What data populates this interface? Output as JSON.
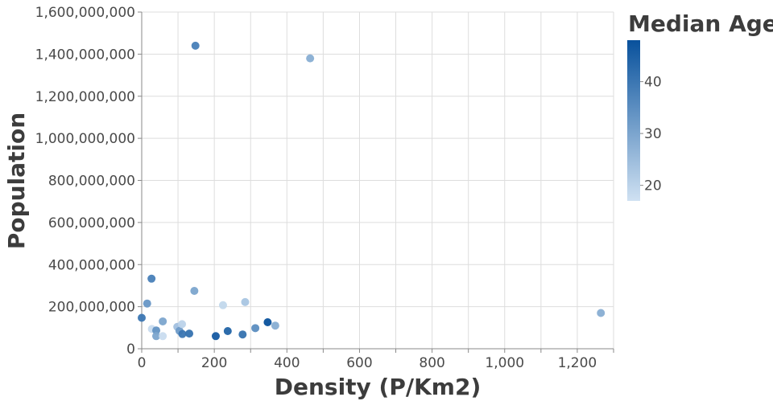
{
  "chart_data": {
    "type": "scatter",
    "title": "",
    "xlabel": "Density (P/Km2)",
    "ylabel": "Population",
    "xlim": [
      0,
      1300
    ],
    "ylim": [
      0,
      1600000000
    ],
    "x_ticks": [
      0,
      200,
      400,
      600,
      800,
      1000,
      1200
    ],
    "x_tick_labels": [
      "0",
      "200",
      "400",
      "600",
      "800",
      "1,000",
      "1,200"
    ],
    "y_ticks": [
      0,
      200000000,
      400000000,
      600000000,
      800000000,
      1000000000,
      1200000000,
      1400000000,
      1600000000
    ],
    "y_tick_labels": [
      "0",
      "200,000,000",
      "400,000,000",
      "600,000,000",
      "800,000,000",
      "1,000,000,000",
      "1,200,000,000",
      "1,400,000,000",
      "1,600,000,000"
    ],
    "grid": true,
    "legend": {
      "title": "Median Age",
      "placement": "right",
      "range": [
        17,
        48
      ],
      "ticks": [
        20,
        30,
        40
      ],
      "tick_labels": [
        "20",
        "30",
        "40"
      ],
      "color_low": "#cfe1f2",
      "color_high": "#08519c"
    },
    "points": [
      {
        "x": 148,
        "y": 1440000000,
        "age": 38
      },
      {
        "x": 464,
        "y": 1380000000,
        "age": 28
      },
      {
        "x": 27,
        "y": 333000000,
        "age": 38
      },
      {
        "x": 15,
        "y": 215000000,
        "age": 33
      },
      {
        "x": 145,
        "y": 275000000,
        "age": 30
      },
      {
        "x": 0,
        "y": 147000000,
        "age": 40
      },
      {
        "x": 224,
        "y": 207000000,
        "age": 19
      },
      {
        "x": 285,
        "y": 222000000,
        "age": 23
      },
      {
        "x": 1265,
        "y": 170000000,
        "age": 28
      },
      {
        "x": 28,
        "y": 94000000,
        "age": 18
      },
      {
        "x": 40,
        "y": 87000000,
        "age": 34
      },
      {
        "x": 40,
        "y": 60000000,
        "age": 30
      },
      {
        "x": 58,
        "y": 130000000,
        "age": 30
      },
      {
        "x": 58,
        "y": 60000000,
        "age": 18
      },
      {
        "x": 98,
        "y": 104000000,
        "age": 24
      },
      {
        "x": 104,
        "y": 85000000,
        "age": 32
      },
      {
        "x": 111,
        "y": 117000000,
        "age": 20
      },
      {
        "x": 112,
        "y": 70000000,
        "age": 40
      },
      {
        "x": 131,
        "y": 72000000,
        "age": 41
      },
      {
        "x": 204,
        "y": 60000000,
        "age": 46
      },
      {
        "x": 237,
        "y": 84000000,
        "age": 44
      },
      {
        "x": 278,
        "y": 68000000,
        "age": 41
      },
      {
        "x": 313,
        "y": 98000000,
        "age": 35
      },
      {
        "x": 347,
        "y": 126000000,
        "age": 48
      },
      {
        "x": 368,
        "y": 110000000,
        "age": 28
      }
    ]
  }
}
